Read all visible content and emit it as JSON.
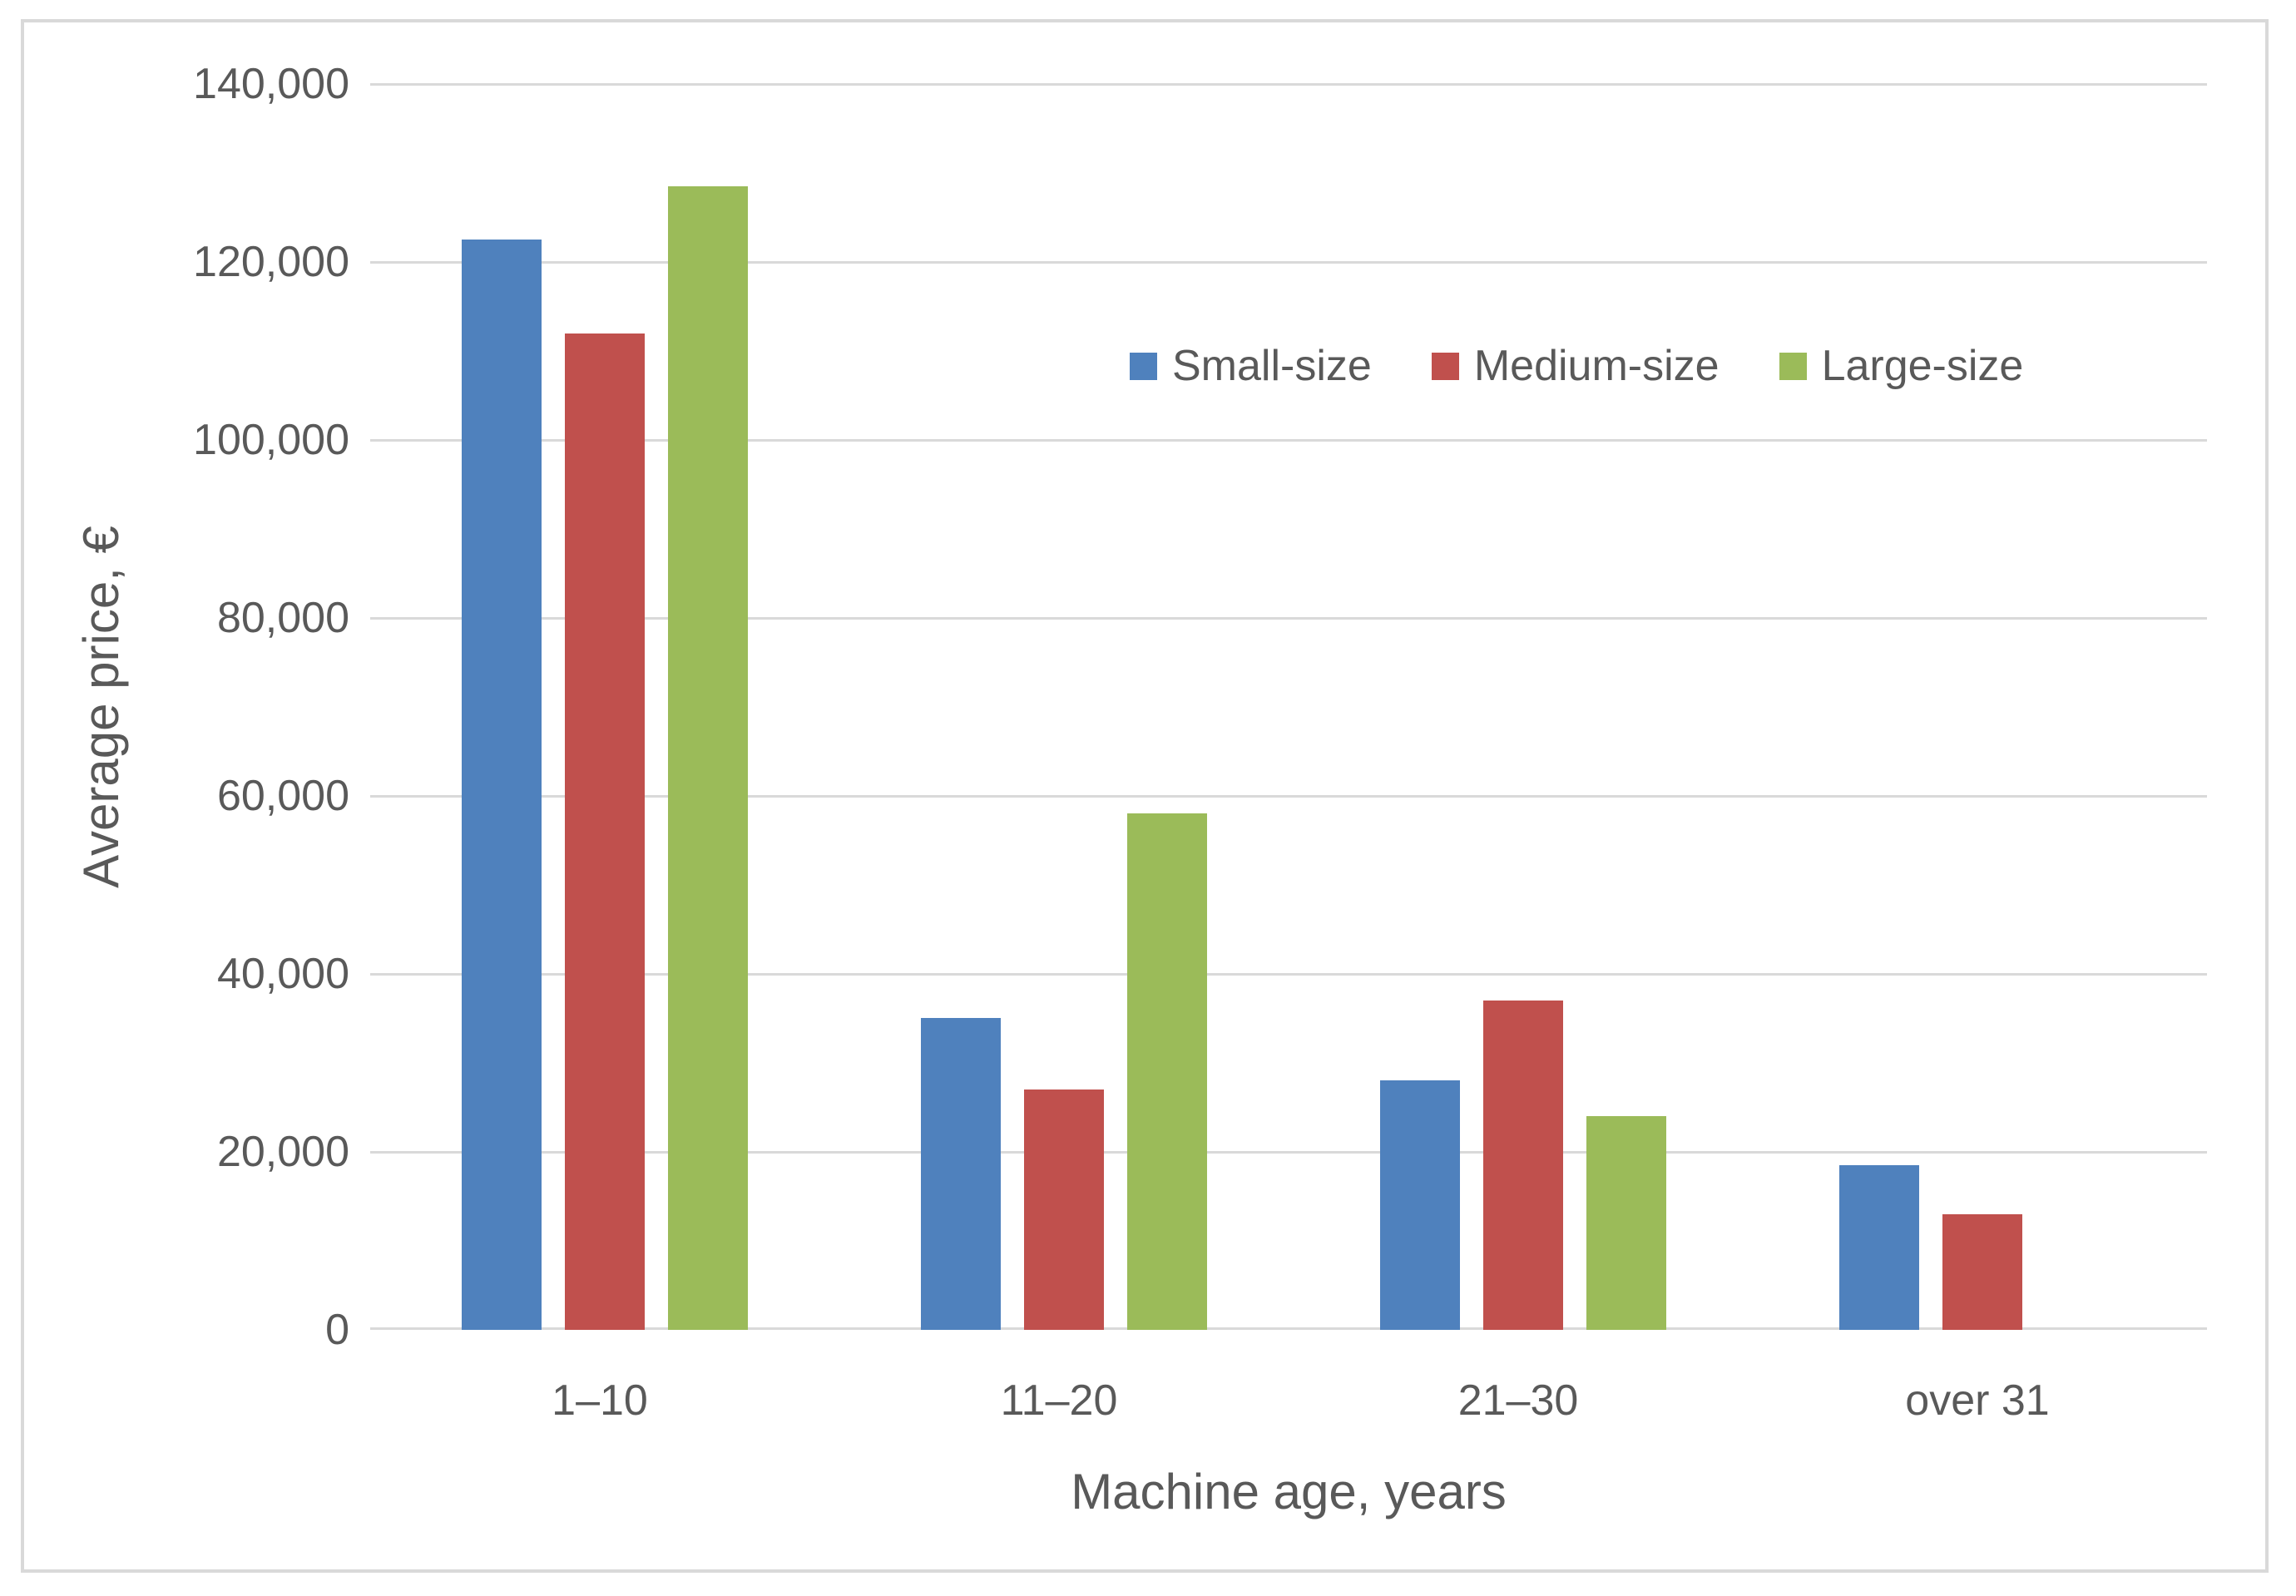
{
  "chart_data": {
    "type": "bar",
    "title": "",
    "categories": [
      "1–10",
      "11–20",
      "21–30",
      "over 31"
    ],
    "series": [
      {
        "name": "Small-size",
        "color": "#4F81BD",
        "values": [
          122500,
          35000,
          28000,
          18500
        ]
      },
      {
        "name": "Medium-size",
        "color": "#C0504D",
        "values": [
          112000,
          27000,
          37000,
          13000
        ]
      },
      {
        "name": "Large-size",
        "color": "#9BBB59",
        "values": [
          128500,
          58000,
          24000,
          null
        ]
      }
    ],
    "xlabel": "Machine age, years",
    "ylabel": "Average price, €",
    "ylim": [
      0,
      140000
    ],
    "ytick_step": 20000,
    "ytick_labels": [
      "0",
      "20,000",
      "40,000",
      "60,000",
      "80,000",
      "100,000",
      "120,000",
      "140,000"
    ],
    "grid": true,
    "legend_position": "inside-top-right",
    "legend_labels": [
      "Small-size",
      "Medium-size",
      "Large-size"
    ]
  },
  "style_colors": {
    "gridline": "#D9D9D9",
    "frame_border": "#D9D9D9",
    "text": "#595959",
    "background": "#FFFFFF"
  }
}
